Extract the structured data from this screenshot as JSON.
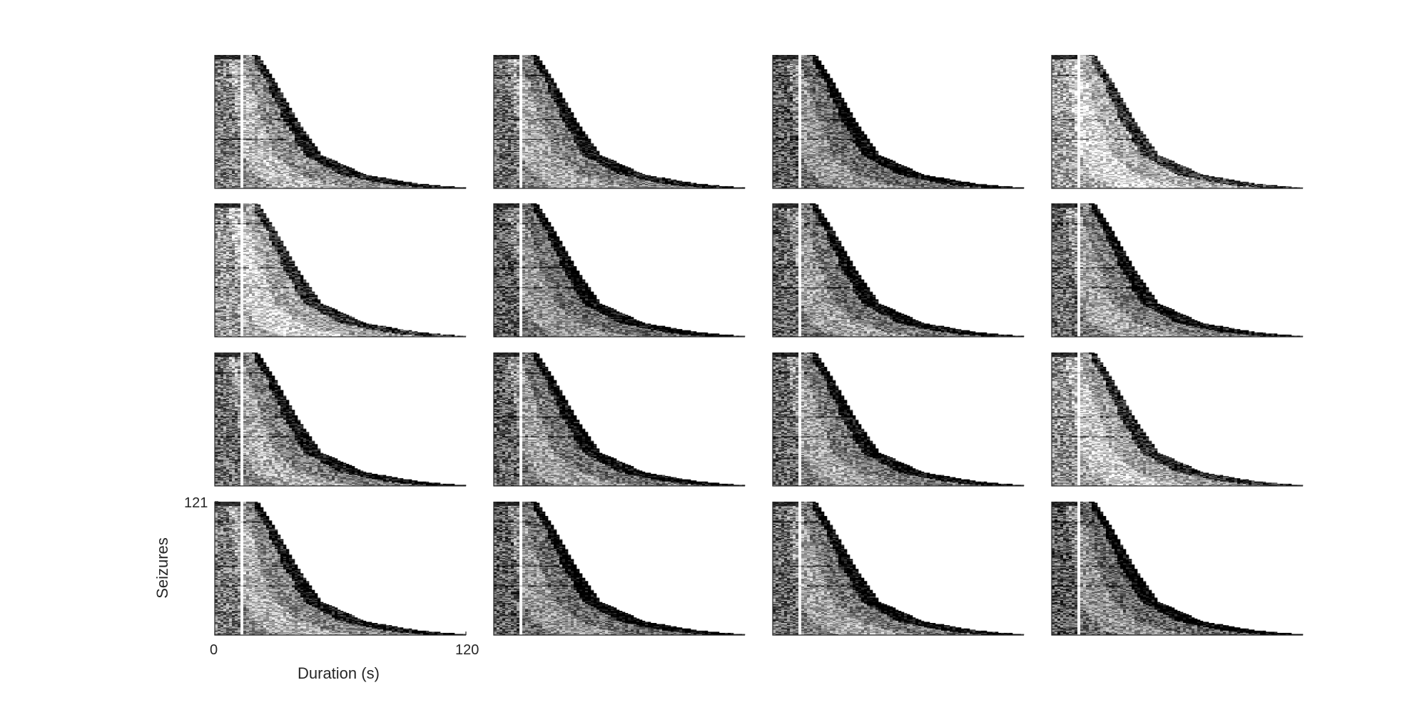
{
  "chart_data": {
    "type": "heatmap",
    "colormap": "grayscale",
    "layout": {
      "rows": 4,
      "cols": 4
    },
    "grid": false,
    "panel_count": 16,
    "seizure_count": 121,
    "duration_max_s": 120,
    "duration_quantiles_s": {
      "shortest": 21,
      "q25": 31,
      "median": 40,
      "q75": 51,
      "longest": 120
    },
    "xlabel": "Duration (s)",
    "ylabel": "Seizures",
    "xlim": [
      0,
      120
    ],
    "ylim": [
      0,
      121
    ],
    "xticks": [
      "0",
      "120"
    ],
    "yticks": [
      "121"
    ],
    "panels_with_ticks": [
      13
    ],
    "panel_styles": [
      {
        "panel": 1,
        "tone": 0.55
      },
      {
        "panel": 2,
        "tone": 0.5
      },
      {
        "panel": 3,
        "tone": 0.42
      },
      {
        "panel": 4,
        "tone": 0.68
      },
      {
        "panel": 5,
        "tone": 0.65
      },
      {
        "panel": 6,
        "tone": 0.42
      },
      {
        "panel": 7,
        "tone": 0.45
      },
      {
        "panel": 8,
        "tone": 0.48
      },
      {
        "panel": 9,
        "tone": 0.5
      },
      {
        "panel": 10,
        "tone": 0.45
      },
      {
        "panel": 11,
        "tone": 0.47
      },
      {
        "panel": 12,
        "tone": 0.62
      },
      {
        "panel": 13,
        "tone": 0.52
      },
      {
        "panel": 14,
        "tone": 0.42
      },
      {
        "panel": 15,
        "tone": 0.46
      },
      {
        "panel": 16,
        "tone": 0.4
      }
    ]
  }
}
